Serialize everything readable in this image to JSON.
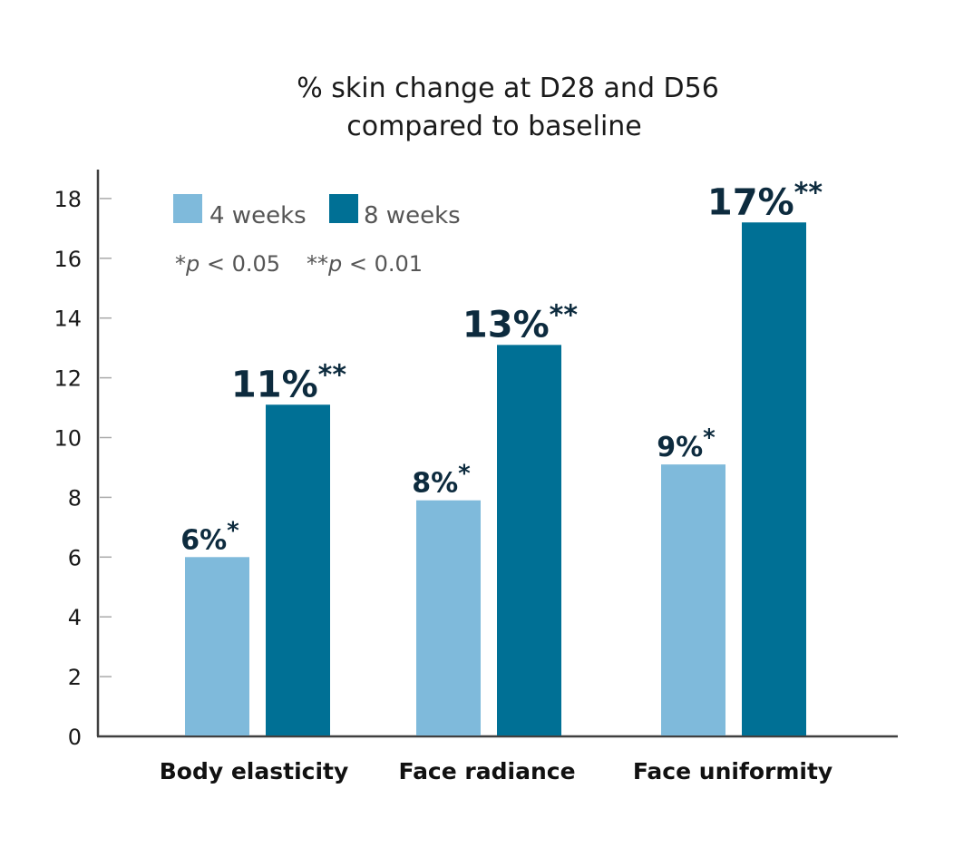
{
  "chart_data": {
    "type": "bar",
    "title_lines": [
      "% skin change at D28 and D56",
      "compared to baseline"
    ],
    "xlabel": "",
    "ylabel": "",
    "ylim": [
      0,
      19
    ],
    "yticks": [
      0,
      2,
      4,
      6,
      8,
      10,
      12,
      14,
      16,
      18
    ],
    "grid": false,
    "legend_position": "top-left",
    "categories": [
      "Body elasticity",
      "Face radiance",
      "Face uniformity"
    ],
    "series": [
      {
        "name": "4 weeks",
        "color": "#7fbadb",
        "values": [
          6,
          7.9,
          9.1
        ],
        "labels": [
          "6%",
          "8%",
          "9%"
        ],
        "significance": [
          "*",
          "*",
          "*"
        ]
      },
      {
        "name": "8 weeks",
        "color": "#007095",
        "values": [
          11.1,
          13.1,
          17.2
        ],
        "labels": [
          "11%",
          "13%",
          "17%"
        ],
        "significance": [
          "**",
          "**",
          "**"
        ]
      }
    ],
    "significance_note": {
      "single": "*p < 0.05",
      "double": "**p < 0.01"
    }
  }
}
